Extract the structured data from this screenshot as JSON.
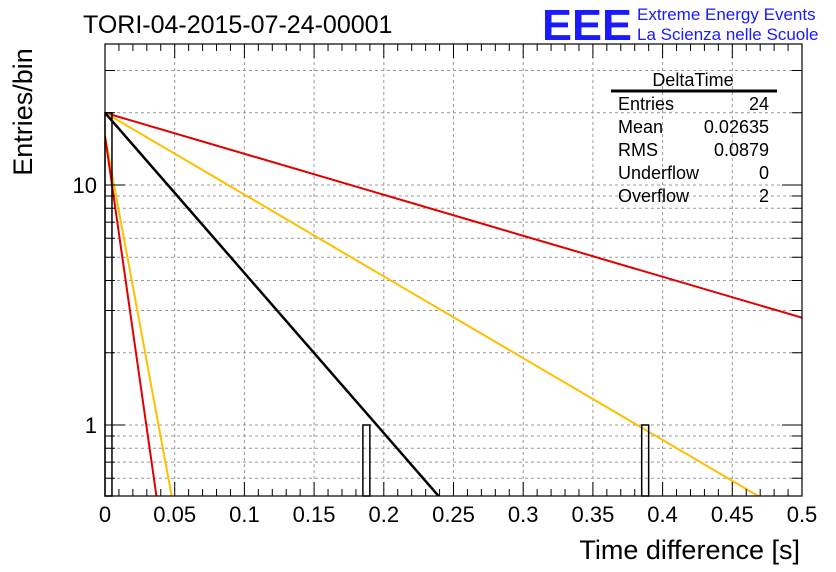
{
  "header": {
    "run_title": "TORI-04-2015-07-24-00001",
    "logo_text": "EEE",
    "logo_line1": "Extreme Energy Events",
    "logo_line2": "La Scienza nelle Scuole"
  },
  "stats_box": {
    "title": "DeltaTime",
    "rows": [
      {
        "label": "Entries",
        "value": "24"
      },
      {
        "label": "Mean",
        "value": "0.02635"
      },
      {
        "label": "RMS",
        "value": "0.0879"
      },
      {
        "label": "Underflow",
        "value": "0"
      },
      {
        "label": "Overflow",
        "value": "2"
      }
    ]
  },
  "colors": {
    "red": "#e00000",
    "orange": "#ffc000",
    "black": "#000000",
    "logo_blue": "#1a1aff"
  },
  "chart_data": {
    "type": "bar",
    "title": "TORI-04-2015-07-24-00001",
    "xlabel": "Time difference [s]",
    "ylabel": "Entries/bin",
    "xlim": [
      0,
      0.5
    ],
    "ylim": [
      0.5,
      35
    ],
    "yscale": "log",
    "grid": true,
    "x_ticks": [
      "0",
      "0.05",
      "0.1",
      "0.15",
      "0.2",
      "0.25",
      "0.3",
      "0.35",
      "0.4",
      "0.45",
      "0.5"
    ],
    "y_ticks": [
      "1",
      "10"
    ],
    "histogram": {
      "bins": [
        {
          "x0": 0.0,
          "x1": 0.005,
          "value": 20
        },
        {
          "x0": 0.185,
          "x1": 0.19,
          "value": 1
        },
        {
          "x0": 0.385,
          "x1": 0.39,
          "value": 1
        }
      ]
    },
    "fit_lines": [
      {
        "color": "red",
        "points": [
          [
            0.0,
            20
          ],
          [
            0.5,
            2.8
          ]
        ]
      },
      {
        "color": "orange",
        "points": [
          [
            0.0,
            20
          ],
          [
            0.47,
            0.5
          ]
        ]
      },
      {
        "color": "black",
        "points": [
          [
            0.0,
            20
          ],
          [
            0.24,
            0.5
          ]
        ]
      },
      {
        "color": "orange",
        "points": [
          [
            0.0,
            16
          ],
          [
            0.048,
            0.5
          ]
        ]
      },
      {
        "color": "red",
        "points": [
          [
            0.0,
            16
          ],
          [
            0.037,
            0.5
          ]
        ]
      }
    ]
  }
}
